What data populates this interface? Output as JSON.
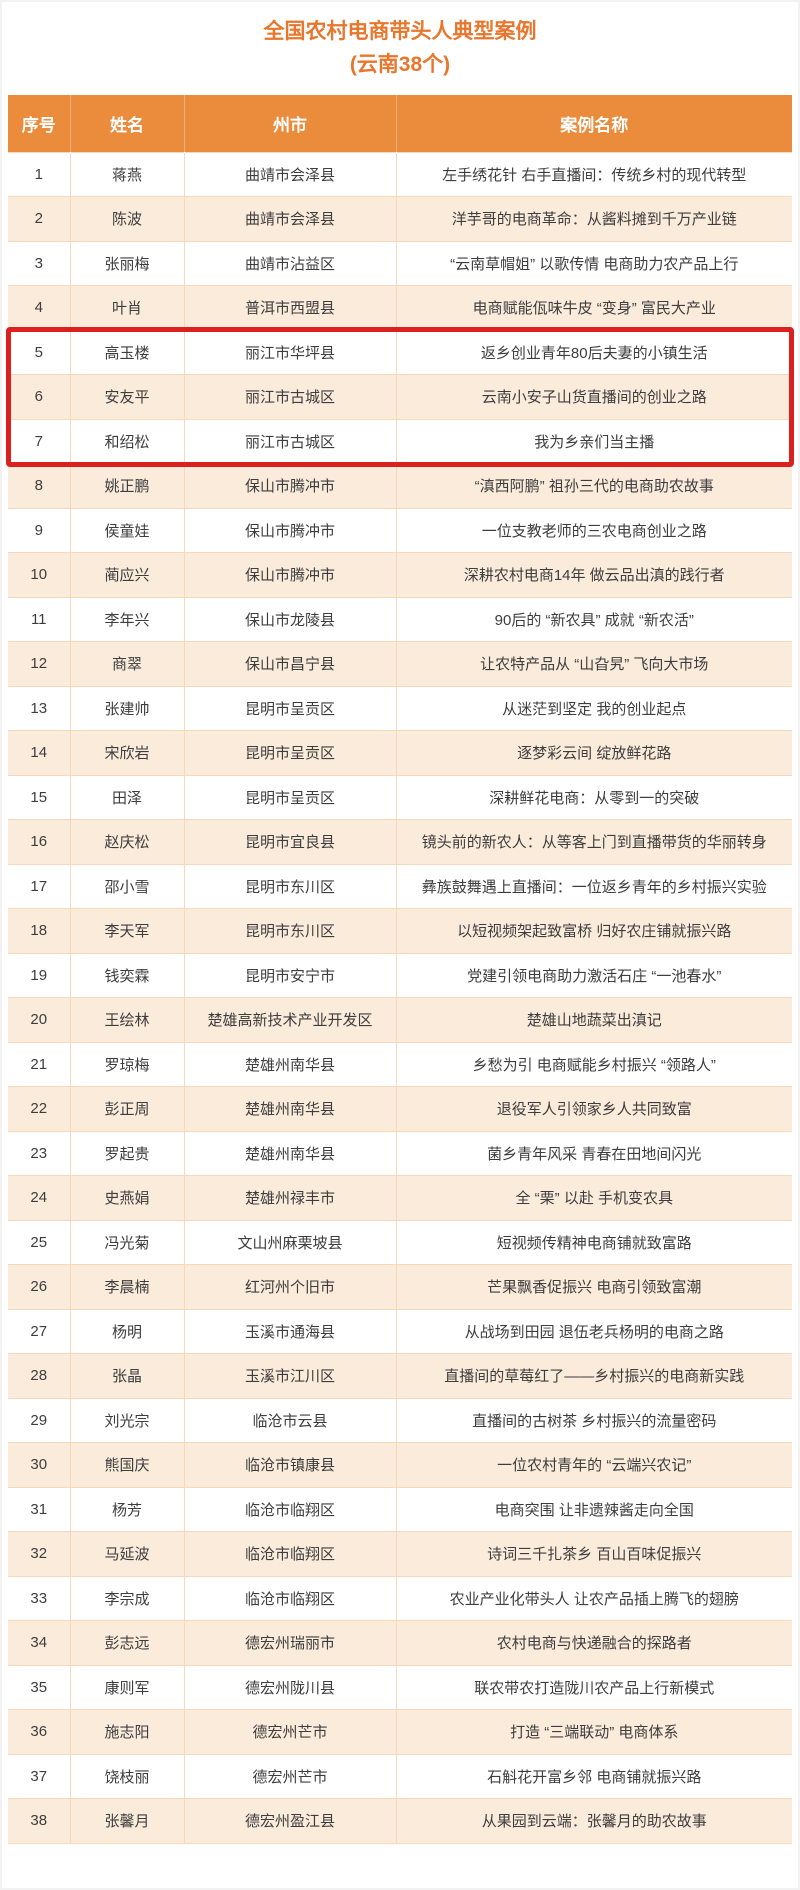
{
  "title": {
    "line1": "全国农村电商带头人典型案例",
    "line2": "(云南38个)"
  },
  "colors": {
    "header_bg": "#EA8C3C",
    "title_text": "#E8762C",
    "header_text": "#FFFFFF",
    "row_alt_bg": "#FBEBDB",
    "row_bg": "#FFFFFF",
    "grid_line": "#F6D9BD",
    "highlight_border": "#DC2020",
    "body_text": "#3D3D3D"
  },
  "table": {
    "columns": [
      "序号",
      "姓名",
      "州市",
      "案例名称"
    ],
    "rows": [
      {
        "no": "1",
        "name": "蒋燕",
        "city": "曲靖市会泽县",
        "case": "左手绣花针 右手直播间：传统乡村的现代转型",
        "highlighted": false
      },
      {
        "no": "2",
        "name": "陈波",
        "city": "曲靖市会泽县",
        "case": "洋芋哥的电商革命：从酱料摊到千万产业链",
        "highlighted": false
      },
      {
        "no": "3",
        "name": "张丽梅",
        "city": "曲靖市沾益区",
        "case": "“云南草帽姐” 以歌传情 电商助力农产品上行",
        "highlighted": false
      },
      {
        "no": "4",
        "name": "叶肖",
        "city": "普洱市西盟县",
        "case": "电商赋能佤味牛皮 “变身” 富民大产业",
        "highlighted": false
      },
      {
        "no": "5",
        "name": "高玉楼",
        "city": "丽江市华坪县",
        "case": "返乡创业青年80后夫妻的小镇生活",
        "highlighted": true
      },
      {
        "no": "6",
        "name": "安友平",
        "city": "丽江市古城区",
        "case": "云南小安子山货直播间的创业之路",
        "highlighted": true
      },
      {
        "no": "7",
        "name": "和绍松",
        "city": "丽江市古城区",
        "case": "我为乡亲们当主播",
        "highlighted": true
      },
      {
        "no": "8",
        "name": "姚正鹏",
        "city": "保山市腾冲市",
        "case": "“滇西阿鹏” 祖孙三代的电商助农故事",
        "highlighted": false
      },
      {
        "no": "9",
        "name": "侯童娃",
        "city": "保山市腾冲市",
        "case": "一位支教老师的三农电商创业之路",
        "highlighted": false
      },
      {
        "no": "10",
        "name": "蔺应兴",
        "city": "保山市腾冲市",
        "case": "深耕农村电商14年 做云品出滇的践行者",
        "highlighted": false
      },
      {
        "no": "11",
        "name": "李年兴",
        "city": "保山市龙陵县",
        "case": "90后的 “新农具” 成就 “新农活”",
        "highlighted": false
      },
      {
        "no": "12",
        "name": "商翠",
        "city": "保山市昌宁县",
        "case": "让农特产品从 “山旮旯” 飞向大市场",
        "highlighted": false
      },
      {
        "no": "13",
        "name": "张建帅",
        "city": "昆明市呈贡区",
        "case": "从迷茫到坚定 我的创业起点",
        "highlighted": false
      },
      {
        "no": "14",
        "name": "宋欣岩",
        "city": "昆明市呈贡区",
        "case": "逐梦彩云间 绽放鲜花路",
        "highlighted": false
      },
      {
        "no": "15",
        "name": "田泽",
        "city": "昆明市呈贡区",
        "case": "深耕鲜花电商：从零到一的突破",
        "highlighted": false
      },
      {
        "no": "16",
        "name": "赵庆松",
        "city": "昆明市宜良县",
        "case": "镜头前的新农人：从等客上门到直播带货的华丽转身",
        "highlighted": false
      },
      {
        "no": "17",
        "name": "邵小雪",
        "city": "昆明市东川区",
        "case": "彝族鼓舞遇上直播间：一位返乡青年的乡村振兴实验",
        "highlighted": false
      },
      {
        "no": "18",
        "name": "李天军",
        "city": "昆明市东川区",
        "case": "以短视频架起致富桥 归好农庄铺就振兴路",
        "highlighted": false
      },
      {
        "no": "19",
        "name": "钱奕霖",
        "city": "昆明市安宁市",
        "case": "党建引领电商助力激活石庄 “一池春水”",
        "highlighted": false
      },
      {
        "no": "20",
        "name": "王绘林",
        "city": "楚雄高新技术产业开发区",
        "case": "楚雄山地蔬菜出滇记",
        "highlighted": false
      },
      {
        "no": "21",
        "name": "罗琼梅",
        "city": "楚雄州南华县",
        "case": "乡愁为引 电商赋能乡村振兴 “领路人”",
        "highlighted": false
      },
      {
        "no": "22",
        "name": "彭正周",
        "city": "楚雄州南华县",
        "case": "退役军人引领家乡人共同致富",
        "highlighted": false
      },
      {
        "no": "23",
        "name": "罗起贵",
        "city": "楚雄州南华县",
        "case": "菌乡青年风采 青春在田地间闪光",
        "highlighted": false
      },
      {
        "no": "24",
        "name": "史燕娟",
        "city": "楚雄州禄丰市",
        "case": "全 “栗” 以赴 手机变农具",
        "highlighted": false
      },
      {
        "no": "25",
        "name": "冯光菊",
        "city": "文山州麻栗坡县",
        "case": "短视频传精神电商铺就致富路",
        "highlighted": false
      },
      {
        "no": "26",
        "name": "李晨楠",
        "city": "红河州个旧市",
        "case": "芒果飘香促振兴 电商引领致富潮",
        "highlighted": false
      },
      {
        "no": "27",
        "name": "杨明",
        "city": "玉溪市通海县",
        "case": "从战场到田园 退伍老兵杨明的电商之路",
        "highlighted": false
      },
      {
        "no": "28",
        "name": "张晶",
        "city": "玉溪市江川区",
        "case": "直播间的草莓红了——乡村振兴的电商新实践",
        "highlighted": false
      },
      {
        "no": "29",
        "name": "刘光宗",
        "city": "临沧市云县",
        "case": "直播间的古树茶 乡村振兴的流量密码",
        "highlighted": false
      },
      {
        "no": "30",
        "name": "熊国庆",
        "city": "临沧市镇康县",
        "case": "一位农村青年的 “云端兴农记”",
        "highlighted": false
      },
      {
        "no": "31",
        "name": "杨芳",
        "city": "临沧市临翔区",
        "case": "电商突围 让非遗辣酱走向全国",
        "highlighted": false
      },
      {
        "no": "32",
        "name": "马延波",
        "city": "临沧市临翔区",
        "case": "诗词三千扎茶乡 百山百味促振兴",
        "highlighted": false
      },
      {
        "no": "33",
        "name": "李宗成",
        "city": "临沧市临翔区",
        "case": "农业产业化带头人 让农产品插上腾飞的翅膀",
        "highlighted": false
      },
      {
        "no": "34",
        "name": "彭志远",
        "city": "德宏州瑞丽市",
        "case": "农村电商与快递融合的探路者",
        "highlighted": false
      },
      {
        "no": "35",
        "name": "康则军",
        "city": "德宏州陇川县",
        "case": "联农带农打造陇川农产品上行新模式",
        "highlighted": false
      },
      {
        "no": "36",
        "name": "施志阳",
        "city": "德宏州芒市",
        "case": "打造 “三端联动” 电商体系",
        "highlighted": false
      },
      {
        "no": "37",
        "name": "饶枝丽",
        "city": "德宏州芒市",
        "case": "石斛花开富乡邻 电商铺就振兴路",
        "highlighted": false
      },
      {
        "no": "38",
        "name": "张馨月",
        "city": "德宏州盈江县",
        "case": "从果园到云端：张馨月的助农故事",
        "highlighted": false
      }
    ]
  }
}
